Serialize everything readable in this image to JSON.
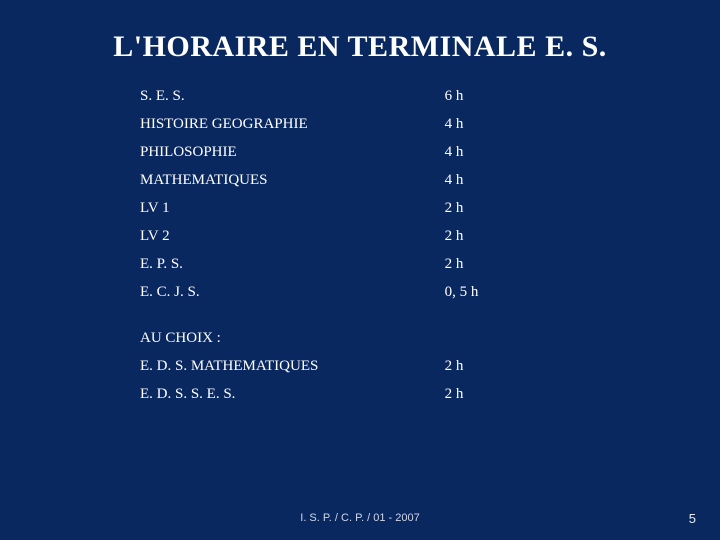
{
  "background_color": "#0a2860",
  "text_color": "#ffffff",
  "title": "L'HORAIRE EN TERMINALE E. S.",
  "title_fontsize": 30,
  "row_fontsize": 15,
  "rows_main": [
    {
      "subject": "S. E. S.",
      "hours": "6 h"
    },
    {
      "subject": "HISTOIRE GEOGRAPHIE",
      "hours": "4 h"
    },
    {
      "subject": "PHILOSOPHIE",
      "hours": "4 h"
    },
    {
      "subject": "MATHEMATIQUES",
      "hours": "4 h"
    },
    {
      "subject": "LV 1",
      "hours": "2 h"
    },
    {
      "subject": "LV 2",
      "hours": "2 h"
    },
    {
      "subject": "E. P. S.",
      "hours": "2 h"
    },
    {
      "subject": "E. C. J. S.",
      "hours": "0, 5 h"
    }
  ],
  "choice_header": "AU CHOIX :",
  "rows_choice": [
    {
      "subject": "E. D. S. MATHEMATIQUES",
      "hours": "2 h"
    },
    {
      "subject": "E. D. S.  S. E. S.",
      "hours": "2 h"
    }
  ],
  "footer": "I. S. P. / C. P. / 01 - 2007",
  "page_number": "5"
}
